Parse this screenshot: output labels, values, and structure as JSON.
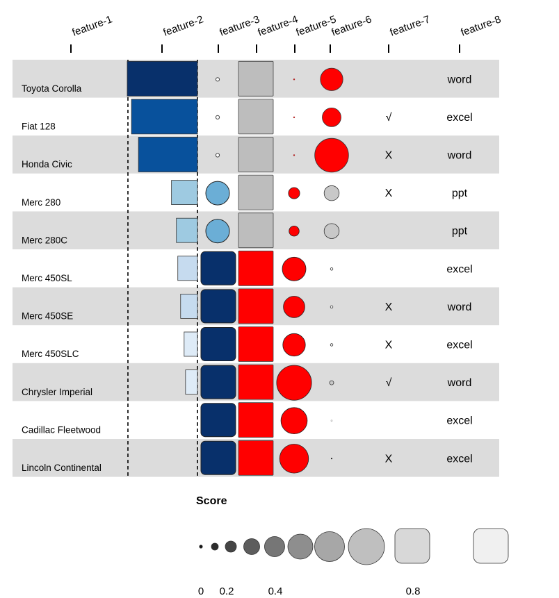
{
  "chart_data": {
    "type": "heatmap",
    "features": [
      "feature-1",
      "feature-2",
      "feature-3",
      "feature-4",
      "feature-5",
      "feature-6",
      "feature-7",
      "feature-8"
    ],
    "rows": [
      {
        "label": "Toyota Corolla",
        "feature_2": 1.0,
        "feature_3": 0.05,
        "feature_4": 0.93,
        "feature_5": 0.03,
        "feature_6": 0.6,
        "feature_7": "",
        "feature_8": "word"
      },
      {
        "label": "Fiat 128",
        "feature_2": 0.94,
        "feature_3": 0.05,
        "feature_4": 0.93,
        "feature_5": 0.03,
        "feature_6": 0.5,
        "feature_7": "√",
        "feature_8": "excel"
      },
      {
        "label": "Honda Civic",
        "feature_2": 0.84,
        "feature_3": 0.05,
        "feature_4": 0.93,
        "feature_5": 0.01,
        "feature_6": 0.9,
        "feature_7": "X",
        "feature_8": "word"
      },
      {
        "label": "Merc 280",
        "feature_2": 0.37,
        "feature_3": 0.5,
        "feature_4": 0.93,
        "feature_5": 0.3,
        "feature_6": 0.4,
        "feature_7": "X",
        "feature_8": "ppt"
      },
      {
        "label": "Merc 280C",
        "feature_2": 0.3,
        "feature_3": 0.5,
        "feature_4": 0.93,
        "feature_5": 0.27,
        "feature_6": 0.4,
        "feature_7": "",
        "feature_8": "ppt"
      },
      {
        "label": "Merc 450SL",
        "feature_2": 0.28,
        "feature_3": 1.0,
        "feature_4": 1.0,
        "feature_5": 0.63,
        "feature_6": 0.03,
        "feature_7": "",
        "feature_8": "excel"
      },
      {
        "label": "Merc 450SE",
        "feature_2": 0.24,
        "feature_3": 1.0,
        "feature_4": 1.0,
        "feature_5": 0.57,
        "feature_6": 0.03,
        "feature_7": "X",
        "feature_8": "word"
      },
      {
        "label": "Merc 450SLC",
        "feature_2": 0.19,
        "feature_3": 1.0,
        "feature_4": 1.0,
        "feature_5": 0.6,
        "feature_6": 0.03,
        "feature_7": "X",
        "feature_8": "excel"
      },
      {
        "label": "Chrysler Imperial",
        "feature_2": 0.17,
        "feature_3": 1.0,
        "feature_4": 1.0,
        "feature_5": 0.93,
        "feature_6": 0.05,
        "feature_7": "√",
        "feature_8": "word"
      },
      {
        "label": "Cadillac Fleetwood",
        "feature_2": 0.0,
        "feature_3": 1.0,
        "feature_4": 1.0,
        "feature_5": 0.7,
        "feature_6": 0.005,
        "feature_7": "",
        "feature_8": "excel"
      },
      {
        "label": "Lincoln Continental",
        "feature_2": 0.0,
        "feature_3": 1.0,
        "feature_4": 1.0,
        "feature_5": 0.77,
        "feature_6": 0.01,
        "feature_7": "X",
        "feature_8": "excel"
      }
    ],
    "legend": {
      "title": "Score",
      "tick_labels": [
        "0",
        "0.2",
        "0.4",
        "0.8"
      ],
      "tick_values": [
        0,
        0.2,
        0.4,
        0.8
      ],
      "steps": 9
    },
    "grid": false
  },
  "colors": {
    "row_band": "#dcdcdc",
    "blue_dark": "#08306b",
    "blue_mid": "#08519c",
    "blue_light": "#9ecae1",
    "blue_lighter": "#c6dbef",
    "blue_lightest": "#deebf7",
    "blue_circle": "#6baed6",
    "gray_square": "#bdbdbd",
    "red": "#ff0000",
    "dark_red": "#b22222",
    "gray_circle": "#c8c8c8"
  }
}
